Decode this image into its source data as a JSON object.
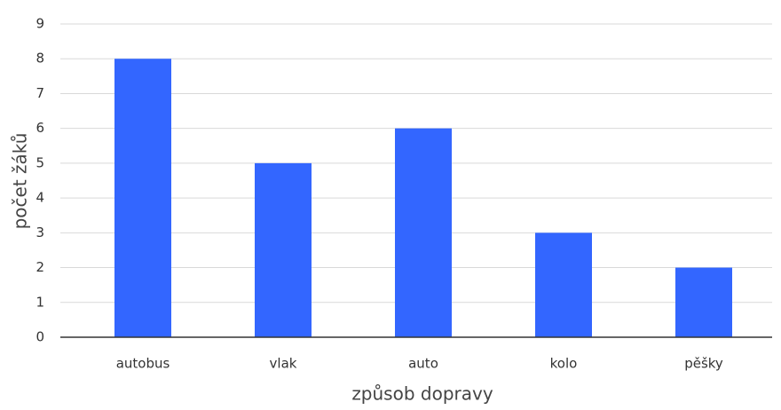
{
  "chart_data": {
    "type": "bar",
    "x_label": "způsob dopravy",
    "y_label": "počet žáků",
    "categories": [
      "autobus",
      "vlak",
      "auto",
      "kolo",
      "pěšky"
    ],
    "values": [
      8,
      5,
      6,
      3,
      2
    ],
    "color": "#3366ff",
    "ylim": [
      0,
      9
    ],
    "yticks": [
      0,
      1,
      2,
      3,
      4,
      5,
      6,
      7,
      8,
      9
    ],
    "grid": true
  }
}
